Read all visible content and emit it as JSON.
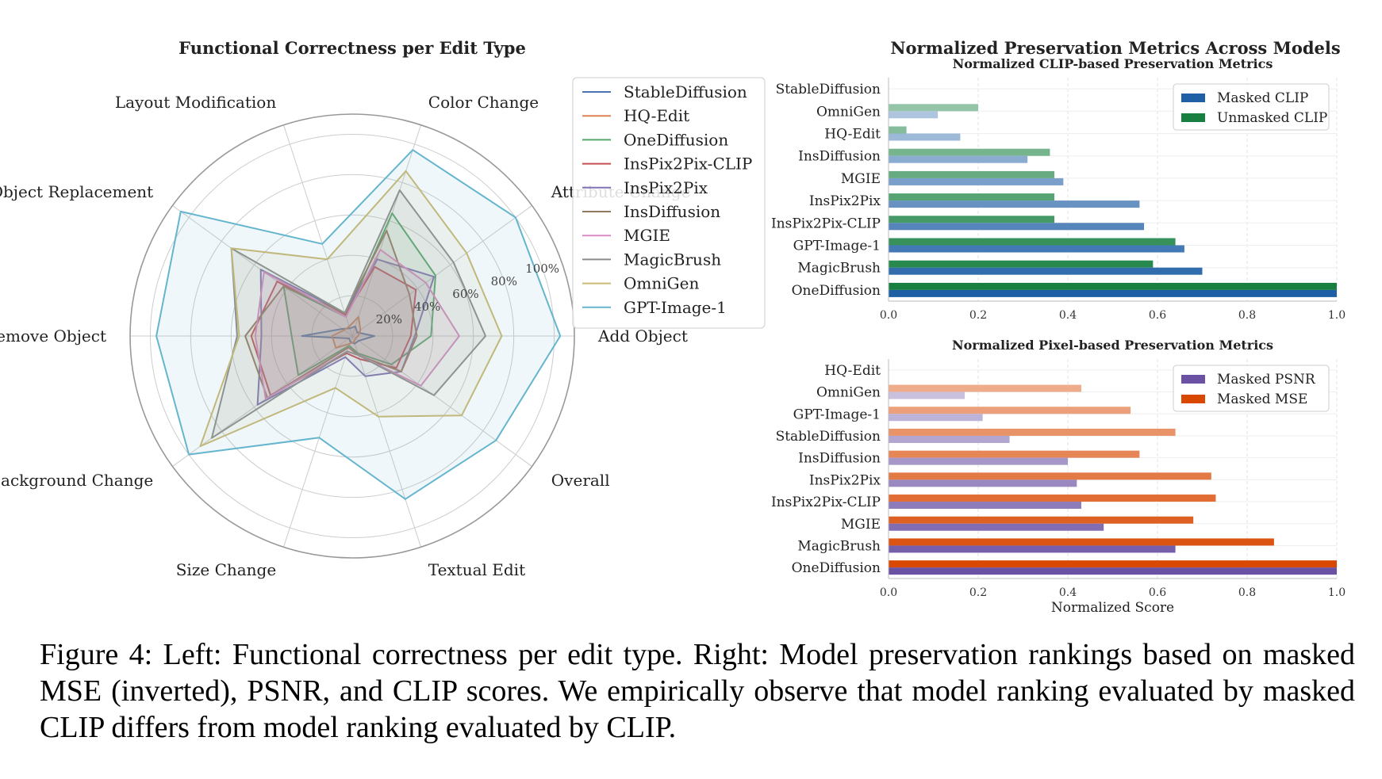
{
  "caption": "Figure 4: Left: Functional correctness per edit type. Right: Model preservation rankings based on masked MSE (inverted), PSNR, and CLIP scores. We empirically observe that model ranking evaluated by masked CLIP differs from model ranking evaluated by CLIP.",
  "right_title": "Normalized Preservation Metrics Across Models",
  "chart_data": [
    {
      "type": "radar",
      "title": "Functional Correctness per Edit Type",
      "categories": [
        "Add Object",
        "Attribute Change",
        "Color Change",
        "Layout Modification",
        "Object Replacement",
        "Remove Object",
        "Scene/Background Change",
        "Size Change",
        "Textual Edit",
        "Overall"
      ],
      "radial_ticks": [
        "20%",
        "40%",
        "60%",
        "80%",
        "100%"
      ],
      "radial_tick_values": [
        20,
        40,
        60,
        80,
        100
      ],
      "rmax": 110,
      "legend_position": "right",
      "series": [
        {
          "name": "StableDiffusion",
          "color": "#4c72b0",
          "values": [
            11,
            3,
            5,
            4,
            6,
            25,
            2,
            3,
            4,
            4
          ]
        },
        {
          "name": "HQ-Edit",
          "color": "#dd8452",
          "values": [
            3,
            5,
            10,
            5,
            5,
            10,
            10,
            4,
            3,
            2
          ]
        },
        {
          "name": "OneDiffusion",
          "color": "#55a868",
          "values": [
            39,
            51,
            64,
            10,
            42,
            30,
            33,
            5,
            9,
            24
          ]
        },
        {
          "name": "InsPix2Pix-CLIP",
          "color": "#c44e52",
          "values": [
            29,
            39,
            36,
            11,
            46,
            50,
            50,
            9,
            12,
            27
          ]
        },
        {
          "name": "InsPix2Pix",
          "color": "#8172b3",
          "values": [
            31,
            50,
            40,
            12,
            56,
            45,
            58,
            11,
            21,
            30
          ]
        },
        {
          "name": "InsDiffusion",
          "color": "#937860",
          "values": [
            32,
            35,
            55,
            12,
            42,
            53,
            52,
            6,
            10,
            30
          ]
        },
        {
          "name": "MGIE",
          "color": "#da8bc3",
          "values": [
            53,
            45,
            45,
            10,
            54,
            48,
            53,
            8,
            10,
            42
          ]
        },
        {
          "name": "MagicBrush",
          "color": "#8c8c8c",
          "values": [
            66,
            62,
            76,
            12,
            74,
            57,
            86,
            8,
            10,
            50
          ]
        },
        {
          "name": "OmniGen",
          "color": "#ccb974",
          "values": [
            74,
            70,
            86,
            40,
            74,
            56,
            93,
            27,
            42,
            67
          ]
        },
        {
          "name": "GPT-Image-1",
          "color": "#64b5cd",
          "values": [
            103,
            100,
            97,
            48,
            105,
            97,
            100,
            53,
            85,
            88
          ]
        }
      ]
    },
    {
      "type": "bar",
      "orientation": "horizontal",
      "title": "Normalized CLIP-based Preservation Metrics",
      "categories": [
        "StableDiffusion",
        "OmniGen",
        "HQ-Edit",
        "InsDiffusion",
        "MGIE",
        "InsPix2Pix",
        "InsPix2Pix-CLIP",
        "GPT-Image-1",
        "MagicBrush",
        "OneDiffusion"
      ],
      "xlim": [
        0,
        1
      ],
      "xticks": [
        "0.0",
        "0.2",
        "0.4",
        "0.6",
        "0.8",
        "1.0"
      ],
      "legend_position": "top-right",
      "series": [
        {
          "name": "Masked CLIP",
          "color": "#1f5fa6",
          "values": [
            0.0,
            0.11,
            0.16,
            0.31,
            0.39,
            0.56,
            0.57,
            0.66,
            0.7,
            1.0
          ]
        },
        {
          "name": "Unmasked CLIP",
          "color": "#178040",
          "values": [
            0.0,
            0.2,
            0.04,
            0.36,
            0.37,
            0.37,
            0.37,
            0.64,
            0.59,
            1.0
          ]
        }
      ]
    },
    {
      "type": "bar",
      "orientation": "horizontal",
      "title": "Normalized Pixel-based Preservation Metrics",
      "categories": [
        "HQ-Edit",
        "OmniGen",
        "GPT-Image-1",
        "StableDiffusion",
        "InsDiffusion",
        "InsPix2Pix",
        "InsPix2Pix-CLIP",
        "MGIE",
        "MagicBrush",
        "OneDiffusion"
      ],
      "xlim": [
        0,
        1
      ],
      "xticks": [
        "0.0",
        "0.2",
        "0.4",
        "0.6",
        "0.8",
        "1.0"
      ],
      "xlabel": "Normalized Score",
      "legend_position": "top-right",
      "series": [
        {
          "name": "Masked PSNR",
          "color": "#6a51a3",
          "values": [
            0.0,
            0.17,
            0.21,
            0.27,
            0.4,
            0.42,
            0.43,
            0.48,
            0.64,
            1.0
          ]
        },
        {
          "name": "Masked MSE",
          "color": "#d94801",
          "values": [
            0.0,
            0.43,
            0.54,
            0.64,
            0.56,
            0.72,
            0.73,
            0.68,
            0.86,
            1.0
          ]
        }
      ]
    }
  ]
}
